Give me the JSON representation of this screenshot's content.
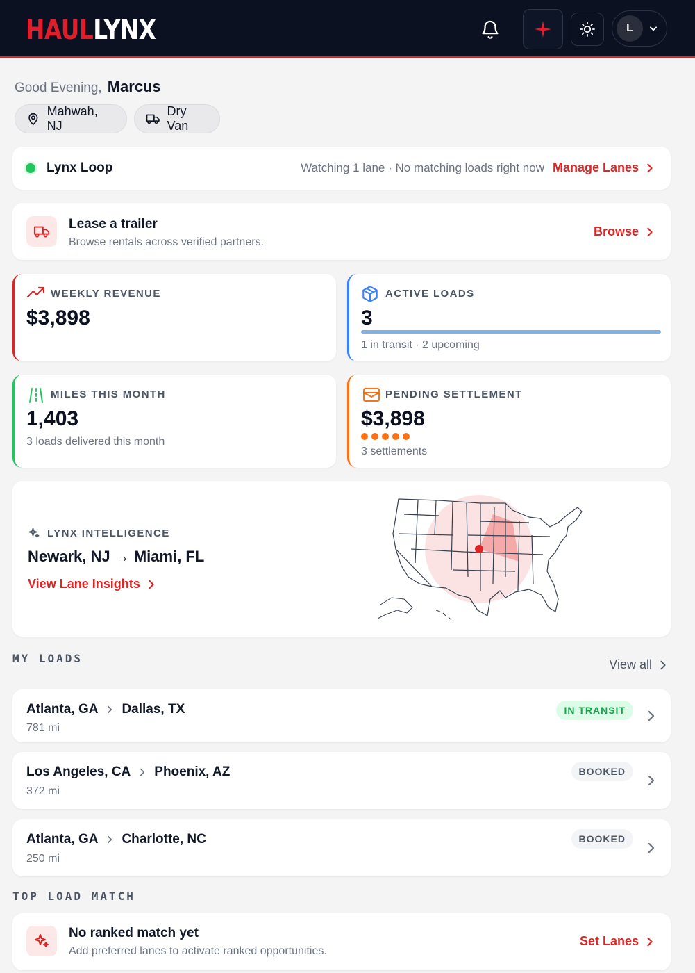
{
  "header": {
    "logo_part1": "HAUL",
    "logo_part2": "LYNX",
    "avatar_initial": "L",
    "icons": [
      "bell-icon",
      "sparkle-icon",
      "sun-icon",
      "chevron-down-icon"
    ]
  },
  "greeting": {
    "text": "Good Evening,",
    "name": "Marcus",
    "location": "Mahwah, NJ",
    "equipment": "Dry Van"
  },
  "lynx_loop": {
    "title": "Lynx Loop",
    "status": "Watching 1 lane · No matching loads right now",
    "action": "Manage Lanes"
  },
  "lease": {
    "title": "Lease a trailer",
    "subtitle": "Browse rentals across verified partners.",
    "action": "Browse"
  },
  "stats": {
    "weekly_revenue": {
      "label": "WEEKLY REVENUE",
      "value": "$3,898"
    },
    "active_loads": {
      "label": "ACTIVE LOADS",
      "value": "3",
      "sub": "1 in transit · 2 upcoming",
      "progress_fraction": 1.0
    },
    "miles": {
      "label": "MILES THIS MONTH",
      "value": "1,403",
      "sub": "3 loads delivered this month"
    },
    "pending": {
      "label": "PENDING SETTLEMENT",
      "value": "$3,898",
      "sub": "3 settlements",
      "dot_count": 5
    }
  },
  "intelligence": {
    "label": "LYNX INTELLIGENCE",
    "route": "Newark, NJ → Miami, FL",
    "action": "View Lane Insights"
  },
  "my_loads": {
    "heading": "MY LOADS",
    "view_all": "View all",
    "items": [
      {
        "origin": "Atlanta, GA",
        "destination": "Dallas, TX",
        "distance": "781 mi",
        "status": "IN TRANSIT",
        "status_kind": "transit"
      },
      {
        "origin": "Los Angeles, CA",
        "destination": "Phoenix, AZ",
        "distance": "372 mi",
        "status": "BOOKED",
        "status_kind": "booked"
      },
      {
        "origin": "Atlanta, GA",
        "destination": "Charlotte, NC",
        "distance": "250 mi",
        "status": "BOOKED",
        "status_kind": "booked"
      }
    ]
  },
  "top_match": {
    "heading": "TOP LOAD MATCH",
    "title": "No ranked match yet",
    "subtitle": "Add preferred lanes to activate ranked opportunities.",
    "action": "Set Lanes"
  },
  "colors": {
    "brand_red": "#dc2626",
    "header_bg": "#0b1120",
    "green": "#22c55e",
    "blue": "#3b82f6",
    "orange": "#f97316"
  }
}
